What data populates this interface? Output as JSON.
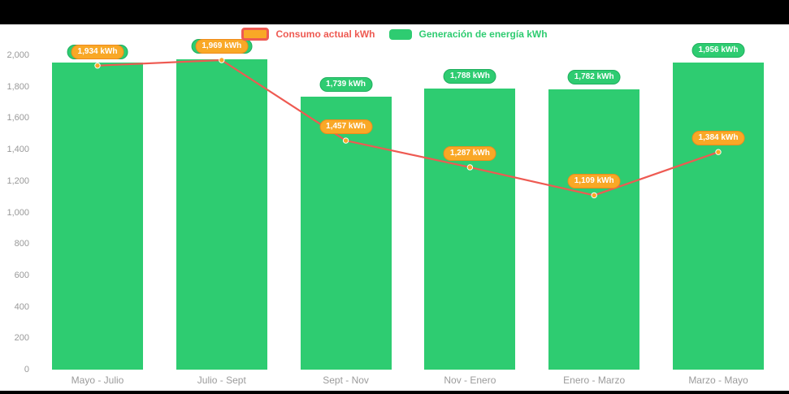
{
  "chart_data": {
    "type": "bar",
    "title": "",
    "categories": [
      "Mayo - Julio",
      "Julio - Sept",
      "Sept - Nov",
      "Nov - Enero",
      "Enero - Marzo",
      "Marzo - Mayo"
    ],
    "series": [
      {
        "name": "Generación de energía kWh",
        "type": "bar",
        "color": "#2ecc71",
        "values": [
          1955,
          1972,
          1739,
          1788,
          1782,
          1956
        ],
        "labels": [
          null,
          null,
          "1,739 kWh",
          "1,788 kWh",
          "1,782 kWh",
          "1,956 kWh"
        ]
      },
      {
        "name": "Consumo actual kWh",
        "type": "line",
        "color": "#ee5a52",
        "marker_color": "#f9a826",
        "values": [
          1934,
          1969,
          1457,
          1287,
          1109,
          1384
        ],
        "labels": [
          "1,934 kWh",
          "1,969 kWh",
          "1,457 kWh",
          "1,287 kWh",
          "1,109 kWh",
          "1,384 kWh"
        ]
      }
    ],
    "y_axis": {
      "min": 0,
      "max": 2000,
      "step": 200,
      "tick_labels": [
        "0",
        "200",
        "400",
        "600",
        "800",
        "1,000",
        "1,200",
        "1,400",
        "1,600",
        "1,800",
        "2,000"
      ]
    },
    "grid": false,
    "legend_position": "top-center",
    "legend": [
      {
        "label": "Consumo actual kWh",
        "color": "#ee5a52",
        "icon": "consumo-line-swatch-icon",
        "swatch": {
          "fill": "#f9a826",
          "border": "#ee5a52"
        }
      },
      {
        "label": "Generación de energía kWh",
        "color": "#2ecc71",
        "icon": "generacion-bar-swatch-icon",
        "swatch": {
          "fill": "#2ecc71"
        }
      }
    ]
  },
  "colors": {
    "page_background": "#000000",
    "chart_background": "#ffffff",
    "axis_text": "#999999"
  }
}
